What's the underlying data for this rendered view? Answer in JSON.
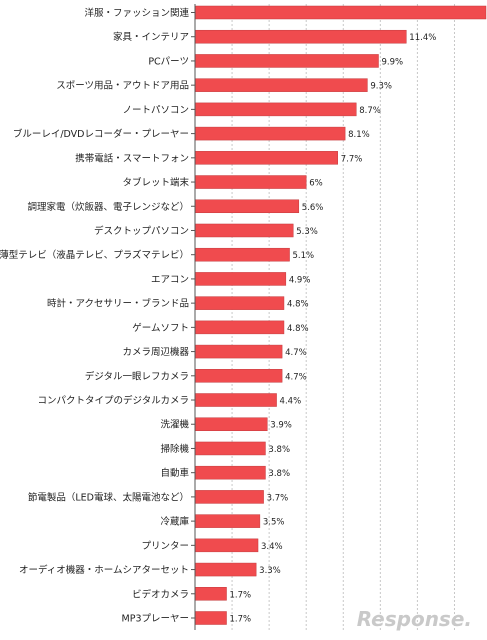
{
  "chart_data": {
    "type": "bar",
    "orientation": "horizontal",
    "categories": [
      "洋服・ファッション関連",
      "家具・インテリア",
      "PCパーツ",
      "スポーツ用品・アウトドア用品",
      "ノートパソコン",
      "ブルーレイ/DVDレコーダー・プレーヤー",
      "携帯電話・スマートフォン",
      "タブレット端末",
      "調理家電（炊飯器、電子レンジなど）",
      "デスクトップパソコン",
      "薄型テレビ（液晶テレビ、プラズマテレビ）",
      "エアコン",
      "時計・アクセサリー・ブランド品",
      "ゲームソフト",
      "カメラ周辺機器",
      "デジタル一眼レフカメラ",
      "コンパクトタイプのデジタルカメラ",
      "洗濯機",
      "掃除機",
      "自動車",
      "節電製品（LED電球、太陽電池など）",
      "冷蔵庫",
      "プリンター",
      "オーディオ機器・ホームシアターセット",
      "ビデオカメラ",
      "MP3プレーヤー"
    ],
    "values": [
      15.7,
      11.4,
      9.9,
      9.3,
      8.7,
      8.1,
      7.7,
      6,
      5.6,
      5.3,
      5.1,
      4.9,
      4.8,
      4.8,
      4.7,
      4.7,
      4.4,
      3.9,
      3.8,
      3.8,
      3.7,
      3.5,
      3.4,
      3.3,
      1.7,
      1.7
    ],
    "value_labels": [
      "",
      "11.4%",
      "9.9%",
      "9.3%",
      "8.7%",
      "8.1%",
      "7.7%",
      "6%",
      "5.6%",
      "5.3%",
      "5.1%",
      "4.9%",
      "4.8%",
      "4.8%",
      "4.7%",
      "4.7%",
      "4.4%",
      "3.9%",
      "3.8%",
      "3.8%",
      "3.7%",
      "3.5%",
      "3.4%",
      "3.3%",
      "1.7%",
      "1.7%"
    ],
    "xlim": [
      0,
      15.7
    ],
    "grid": "vertical-dashed",
    "bar_color": "#f04b4e"
  },
  "watermark": {
    "text": "Response."
  }
}
